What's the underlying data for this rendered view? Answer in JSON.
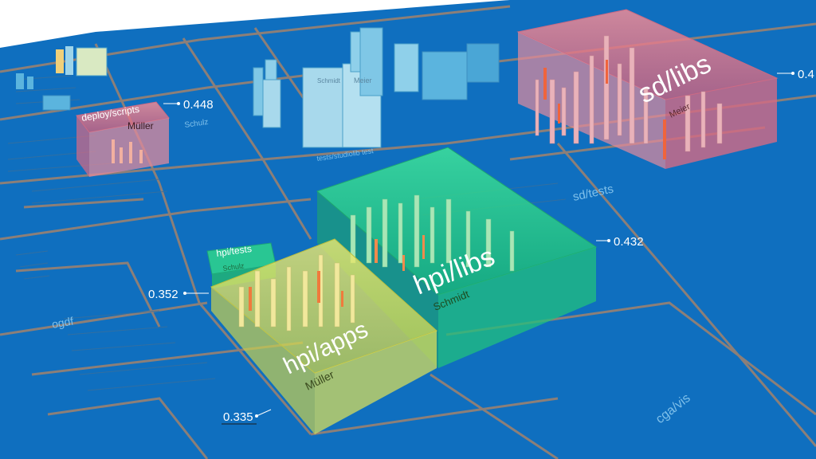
{
  "colors": {
    "background": "#ffffff",
    "ground": "#0f6fbf",
    "ground_dark": "#0b5fa6",
    "district_border": "#8c7f78",
    "building_light": "#7fc7e6",
    "building_face": "#a8d9ec",
    "highlight_red": "#e06a78",
    "highlight_green": "#2ed68c",
    "highlight_yellow": "#e8e25a",
    "hot_orange": "#f0643c",
    "label_white": "#ffffff",
    "label_dark": "#1e4a1e"
  },
  "district_labels": {
    "ogdf": "ogdf",
    "sd_tests": "sd/tests",
    "cga_vis": "cga/vis",
    "tests_studiolib": "tests/studiolib test"
  },
  "highlight_districts": [
    {
      "id": "sd-libs",
      "name": "sd/libs",
      "owner": "Meier",
      "value": "0.4"
    },
    {
      "id": "deploy-scripts",
      "name": "deploy/scripts",
      "owner": "Müller",
      "value": "0.448"
    },
    {
      "id": "hpi-libs",
      "name": "hpi/libs",
      "owner": "Schmidt",
      "value": "0.432"
    },
    {
      "id": "hpi-apps",
      "name": "hpi/apps",
      "owner": "Müller",
      "value": "0.335"
    },
    {
      "id": "hpi-tests",
      "name": "hpi/tests",
      "owner": "Schulz",
      "value": "0.352"
    }
  ],
  "small_labels": {
    "schulz_top": "Schulz",
    "schmidt_tall": "Schmidt",
    "meier_tall": "Meier"
  }
}
